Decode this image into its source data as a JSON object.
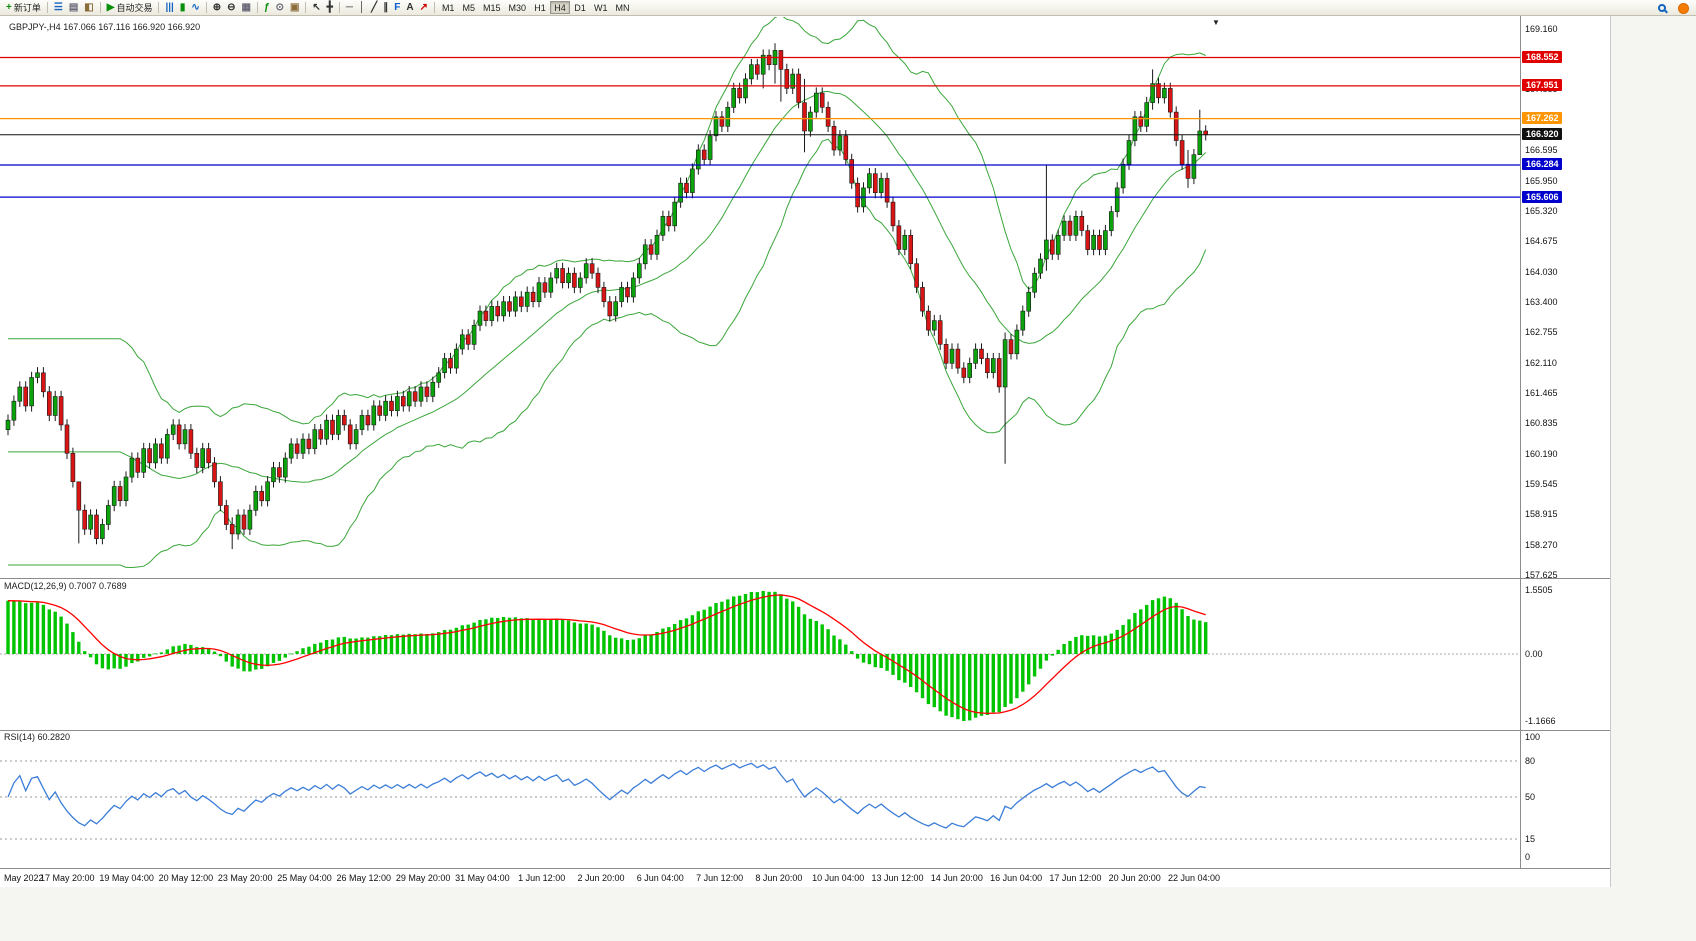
{
  "toolbar": {
    "groups": [
      {
        "items": [
          {
            "name": "new-order",
            "label": "新订单"
          }
        ]
      },
      {
        "items": [
          {
            "name": "market-watch"
          },
          {
            "name": "data-window"
          },
          {
            "name": "navigator"
          }
        ]
      },
      {
        "items": [
          {
            "name": "auto-trading",
            "label": "自动交易"
          }
        ]
      },
      {
        "items": [
          {
            "name": "bar-chart"
          },
          {
            "name": "candlestick-chart"
          },
          {
            "name": "line-chart"
          }
        ]
      },
      {
        "items": [
          {
            "name": "zoom-in"
          },
          {
            "name": "zoom-out"
          },
          {
            "name": "tile-windows"
          }
        ]
      },
      {
        "items": [
          {
            "name": "indicators"
          },
          {
            "name": "periods"
          },
          {
            "name": "templates"
          }
        ]
      },
      {
        "items": [
          {
            "name": "cursor"
          },
          {
            "name": "crosshair"
          }
        ]
      },
      {
        "items": [
          {
            "name": "horizontal-line"
          },
          {
            "name": "vertical-line"
          },
          {
            "name": "trendline"
          },
          {
            "name": "channel"
          },
          {
            "name": "fibonacci"
          },
          {
            "name": "text"
          },
          {
            "name": "arrows"
          }
        ]
      },
      {
        "items": [
          {
            "name": "M1",
            "tf": true
          },
          {
            "name": "M5",
            "tf": true
          },
          {
            "name": "M15",
            "tf": true
          },
          {
            "name": "M30",
            "tf": true
          },
          {
            "name": "H1",
            "tf": true
          },
          {
            "name": "H4",
            "tf": true
          },
          {
            "name": "D1",
            "tf": true
          },
          {
            "name": "W1",
            "tf": true
          },
          {
            "name": "MN",
            "tf": true
          }
        ]
      }
    ],
    "right_items": [
      {
        "name": "search"
      },
      {
        "name": "community"
      }
    ],
    "timeframes": {
      "active": "H4"
    }
  },
  "chart": {
    "symbol_label": "GBPJPY-,H4 167.066 167.116 166.920 166.920",
    "shift_marker": "▼",
    "levels": [
      {
        "price": 168.552,
        "label": "168.552",
        "color": "#e00000"
      },
      {
        "price": 167.951,
        "label": "167.951",
        "color": "#e00000"
      },
      {
        "price": 167.262,
        "label": "167.262",
        "color": "#ff9500"
      },
      {
        "price": 166.92,
        "label": "166.920",
        "color": "#111111",
        "current": true
      },
      {
        "price": 166.284,
        "label": "166.284",
        "color": "#0000cc"
      },
      {
        "price": 165.606,
        "label": "165.606",
        "color": "#0000cc"
      }
    ],
    "y_ticks": [
      "169.160",
      "168.530",
      "167.885",
      "167.240",
      "166.595",
      "165.950",
      "165.320",
      "164.675",
      "164.030",
      "163.400",
      "162.755",
      "162.110",
      "161.465",
      "160.835",
      "160.190",
      "159.545",
      "158.915",
      "158.270",
      "157.625"
    ]
  },
  "macd": {
    "label": "MACD(12,26,9) 0.7007 0.7689",
    "scale": [
      "1.5505",
      "0.00",
      "-1.1666"
    ]
  },
  "rsi": {
    "label": "RSI(14) 60.2820",
    "scale": [
      "100",
      "80",
      "50",
      "15",
      "0"
    ],
    "levels": [
      80,
      50,
      15
    ]
  },
  "time_axis": {
    "labels": [
      "May 2022",
      "17 May 20:00",
      "19 May 04:00",
      "20 May 12:00",
      "23 May 20:00",
      "25 May 04:00",
      "26 May 12:00",
      "29 May 20:00",
      "31 May 04:00",
      "1 Jun 12:00",
      "2 Jun 20:00",
      "6 Jun 04:00",
      "7 Jun 12:00",
      "8 Jun 20:00",
      "10 Jun 04:00",
      "13 Jun 12:00",
      "14 Jun 20:00",
      "16 Jun 04:00",
      "17 Jun 12:00",
      "20 Jun 20:00",
      "22 Jun 04:00"
    ]
  },
  "colors": {
    "up": "#0ba30b",
    "down": "#d81414",
    "bollinger": "#3aa63a",
    "macd_hist": "#00c400",
    "macd_signal": "#ff0000",
    "rsi_line": "#3b7dd8"
  },
  "chart_data": {
    "type": "candlestick",
    "symbol": "GBPJPY-",
    "timeframe": "H4",
    "ohlc_current": {
      "open": 167.066,
      "high": 167.116,
      "low": 166.92,
      "close": 166.92
    },
    "axis_range": {
      "max": 169.16,
      "min": 157.625
    },
    "indicators": [
      {
        "name": "Bollinger Bands",
        "period": 20,
        "deviation": 2
      },
      {
        "name": "MACD",
        "fast": 12,
        "slow": 26,
        "signal": 9,
        "values": [
          0.7007,
          0.7689
        ],
        "scale_max": 1.5505,
        "scale_min": -1.1666
      },
      {
        "name": "RSI",
        "period": 14,
        "value": 60.282
      }
    ],
    "open_first": 160.7,
    "closes": [
      160.9,
      161.3,
      161.6,
      161.2,
      161.8,
      161.9,
      161.5,
      161.0,
      161.4,
      160.8,
      160.2,
      159.6,
      159.0,
      158.6,
      158.9,
      158.4,
      158.7,
      159.1,
      159.5,
      159.2,
      159.7,
      160.1,
      159.8,
      160.3,
      160.0,
      160.4,
      160.1,
      160.6,
      160.8,
      160.4,
      160.7,
      160.2,
      159.9,
      160.3,
      160.0,
      159.6,
      159.1,
      158.7,
      158.5,
      158.9,
      158.6,
      159.0,
      159.4,
      159.2,
      159.6,
      159.9,
      159.7,
      160.1,
      160.4,
      160.2,
      160.5,
      160.3,
      160.7,
      160.5,
      160.9,
      160.6,
      161.0,
      160.8,
      160.4,
      160.7,
      161.0,
      160.8,
      161.2,
      161.0,
      161.3,
      161.1,
      161.4,
      161.2,
      161.5,
      161.3,
      161.6,
      161.4,
      161.7,
      161.9,
      162.2,
      162.0,
      162.4,
      162.7,
      162.5,
      162.9,
      163.2,
      163.0,
      163.3,
      163.1,
      163.4,
      163.2,
      163.5,
      163.3,
      163.6,
      163.4,
      163.8,
      163.6,
      163.9,
      164.1,
      163.8,
      164.0,
      163.7,
      163.9,
      164.2,
      164.0,
      163.7,
      163.4,
      163.1,
      163.4,
      163.7,
      163.5,
      163.9,
      164.2,
      164.6,
      164.4,
      164.8,
      165.2,
      165.0,
      165.5,
      165.9,
      165.7,
      166.2,
      166.6,
      166.4,
      166.9,
      167.3,
      167.1,
      167.5,
      167.9,
      167.7,
      168.1,
      168.4,
      168.2,
      168.6,
      168.4,
      168.7,
      168.3,
      167.9,
      168.2,
      167.6,
      167.0,
      167.4,
      167.8,
      167.5,
      167.1,
      166.6,
      166.9,
      166.4,
      165.9,
      165.4,
      165.8,
      166.1,
      165.7,
      166.0,
      165.5,
      165.0,
      164.5,
      164.8,
      164.2,
      163.7,
      163.2,
      162.8,
      163.0,
      162.5,
      162.1,
      162.4,
      162.0,
      161.8,
      162.1,
      162.4,
      162.2,
      161.9,
      162.2,
      161.6,
      162.6,
      162.3,
      162.8,
      163.2,
      163.6,
      164.0,
      164.3,
      164.7,
      164.4,
      164.8,
      165.1,
      164.8,
      165.2,
      164.9,
      164.5,
      164.8,
      164.5,
      164.9,
      165.3,
      165.8,
      166.3,
      166.8,
      167.3,
      167.1,
      167.6,
      168.0,
      167.7,
      167.9,
      167.4,
      166.8,
      166.3,
      166.0,
      166.5,
      167.0,
      166.92
    ],
    "wick_overrides": {
      "12": [
        159.45,
        158.3
      ],
      "38": [
        158.85,
        158.18
      ],
      "128": [
        168.72,
        167.9
      ],
      "130": [
        168.85,
        168.0
      ],
      "131": [
        168.6,
        167.62
      ],
      "135": [
        168.1,
        166.55
      ],
      "169": [
        162.75,
        159.98
      ],
      "176": [
        166.28,
        164.05
      ],
      "194": [
        168.3,
        167.45
      ],
      "200": [
        166.6,
        165.8
      ],
      "202": [
        167.45,
        166.55
      ]
    }
  }
}
